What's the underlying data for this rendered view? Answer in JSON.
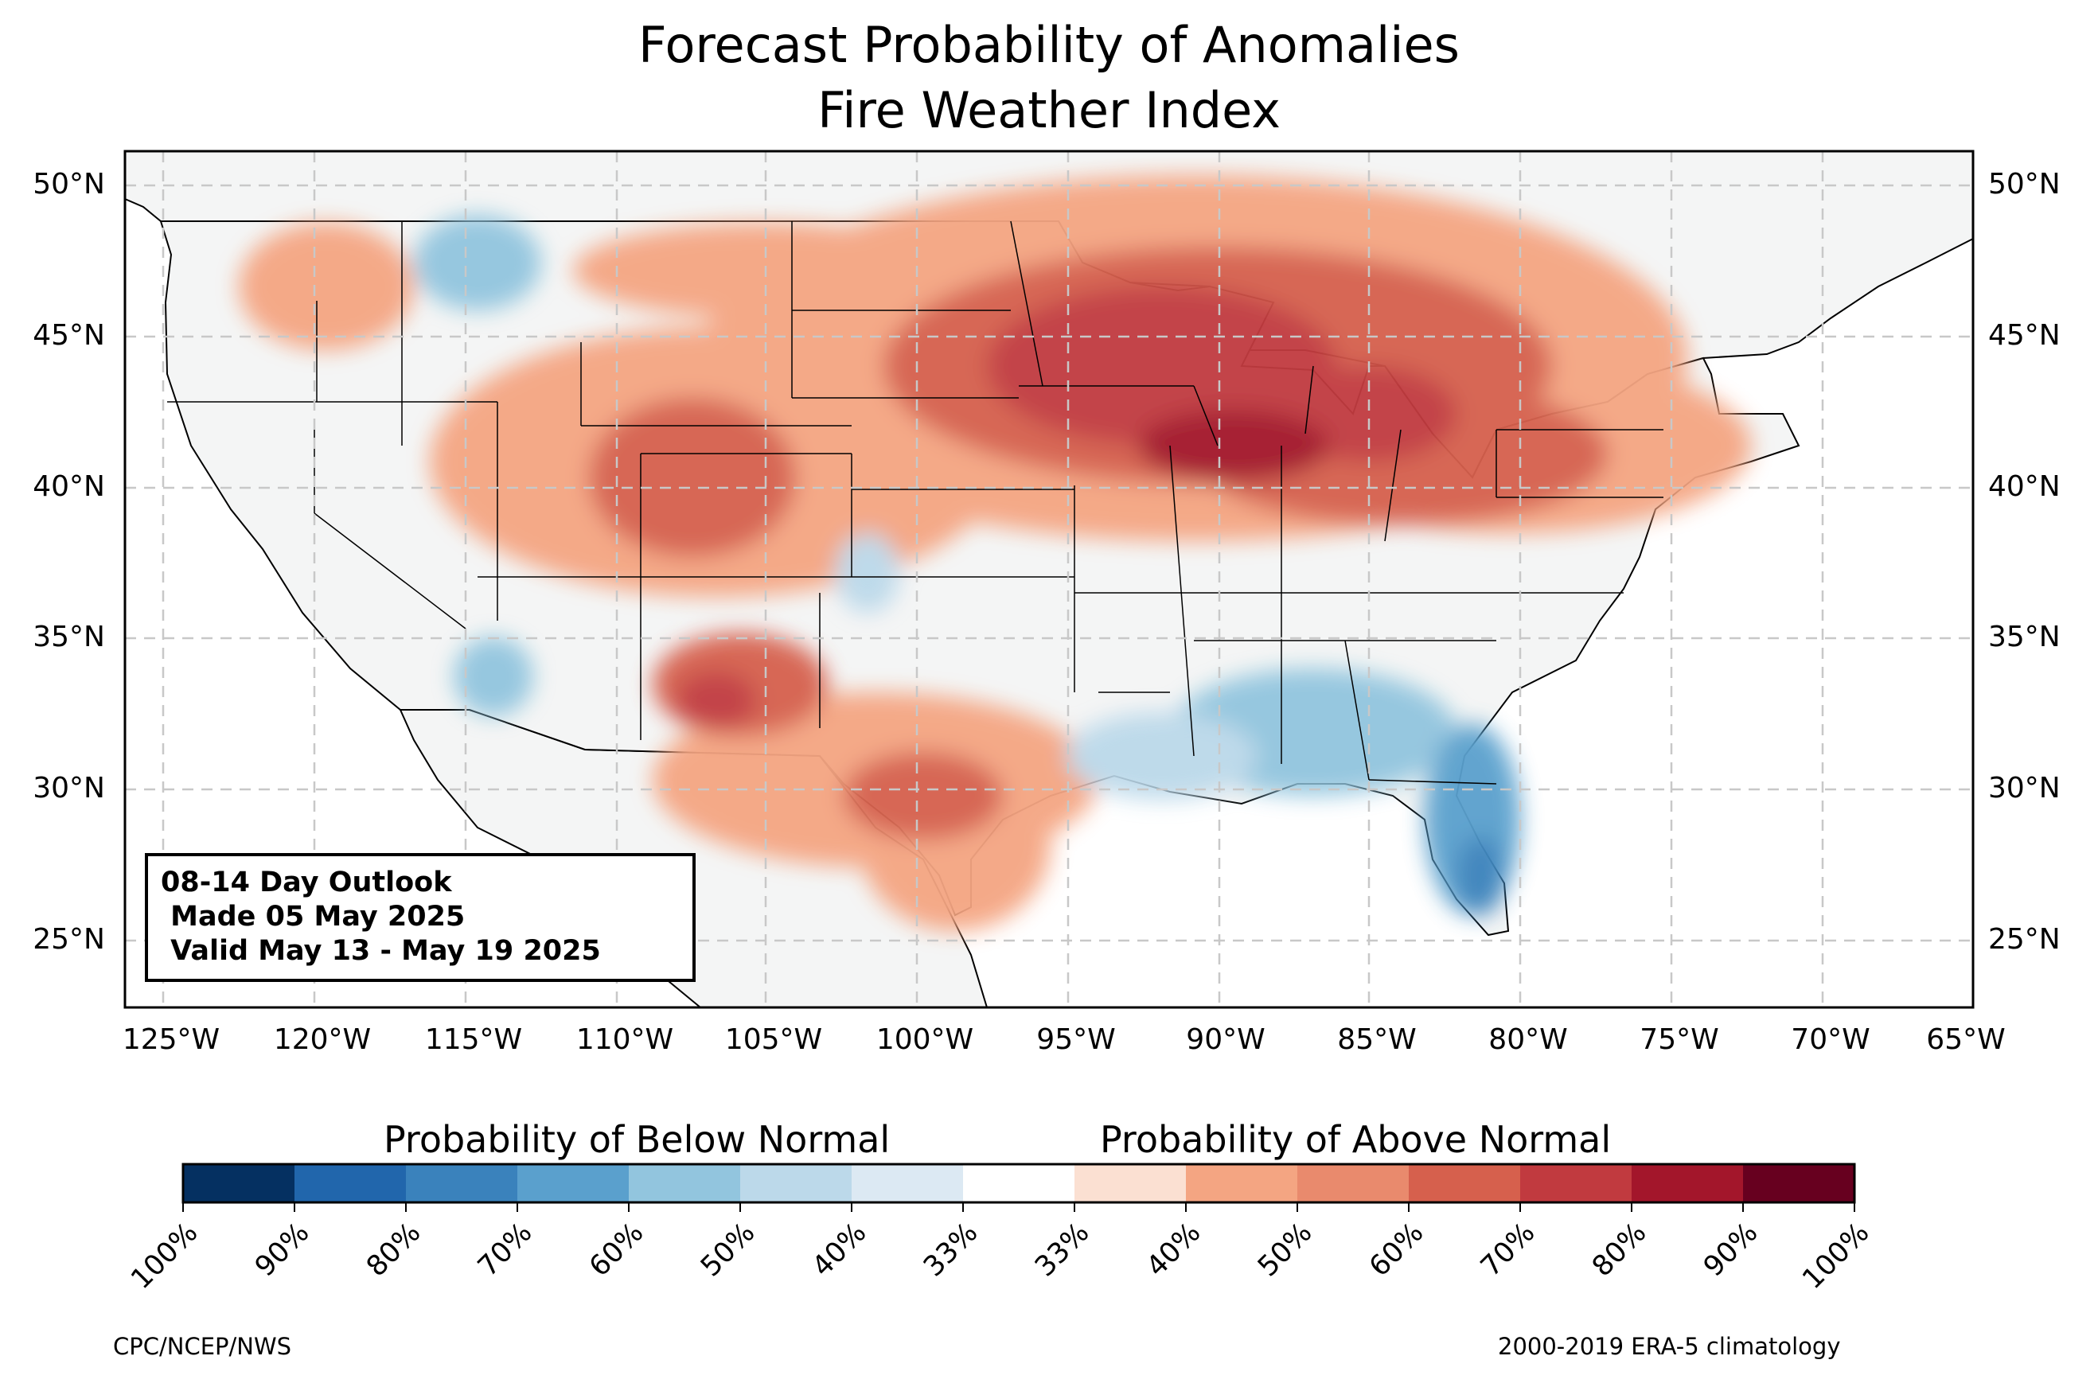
{
  "title_line1": "Forecast Probability of Anomalies",
  "title_line2": "Fire Weather Index",
  "outlook": {
    "line1": "08-14 Day Outlook",
    "line2": " Made 05 May 2025",
    "line3": " Valid May 13 - May 19 2025"
  },
  "axes": {
    "lat_labels": [
      "50°N",
      "45°N",
      "40°N",
      "35°N",
      "30°N",
      "25°N"
    ],
    "lon_labels": [
      "125°W",
      "120°W",
      "115°W",
      "110°W",
      "105°W",
      "100°W",
      "95°W",
      "90°W",
      "85°W",
      "80°W",
      "75°W",
      "70°W",
      "65°W"
    ]
  },
  "legend": {
    "below_title": "Probability of Below Normal",
    "above_title": "Probability of Above Normal",
    "tick_labels": [
      "100%",
      "90%",
      "80%",
      "70%",
      "60%",
      "50%",
      "40%",
      "33%",
      "33%",
      "40%",
      "50%",
      "60%",
      "70%",
      "80%",
      "90%",
      "100%"
    ],
    "colors": [
      "#053061",
      "#2166ac",
      "#3a82bc",
      "#5aa0cd",
      "#92c5de",
      "#bcd9ea",
      "#dce9f3",
      "#ffffff",
      "#fbe0d2",
      "#f4a582",
      "#e98a6d",
      "#d6604d",
      "#c13a3f",
      "#a3162b",
      "#67001f"
    ]
  },
  "credits": {
    "left": "CPC/NCEP/NWS",
    "right": "2000-2019 ERA-5 climatology"
  },
  "colors": {
    "land": "#f4f5f5",
    "ocean": "#ffffff",
    "gridline": "#c8c8c8"
  }
}
